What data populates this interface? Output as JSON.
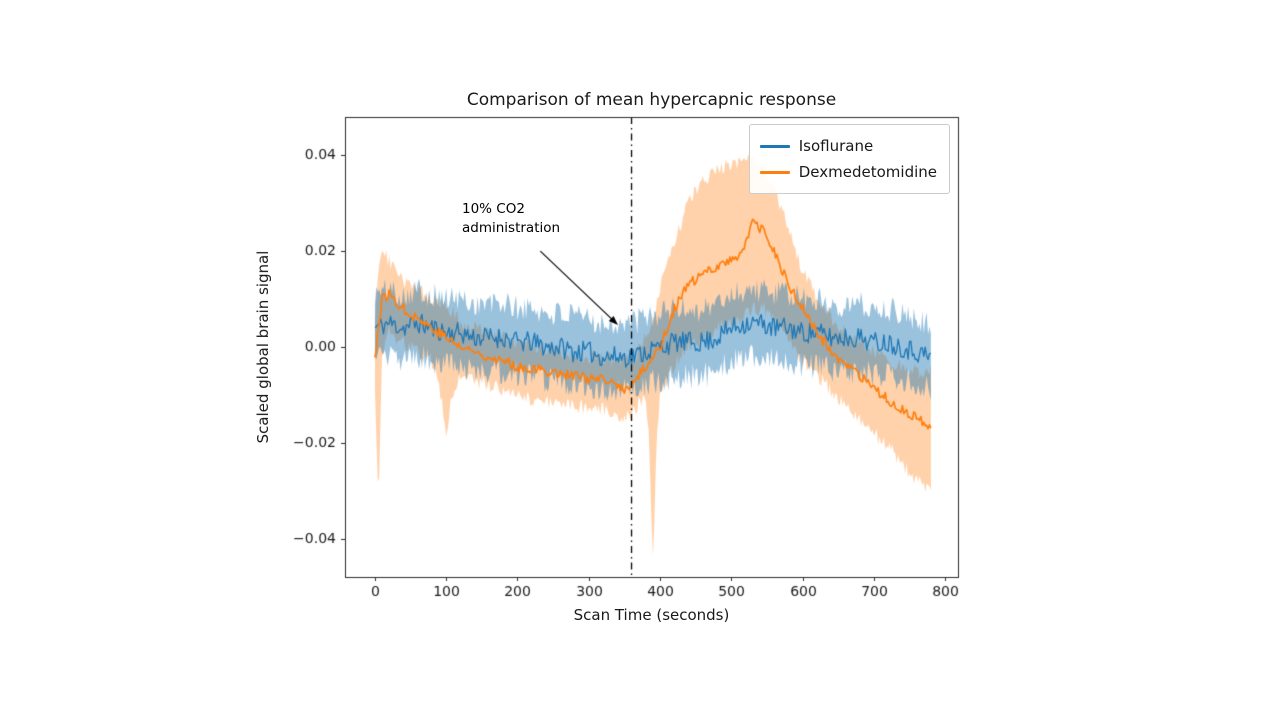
{
  "figure": {
    "title": "Comparison of mean hypercapnic response",
    "xlabel": "Scan Time (seconds)",
    "ylabel": "Scaled global brain signal",
    "background": "#ffffff"
  },
  "legend": {
    "items": [
      {
        "label": "Isoflurane",
        "color": "#1f77b4"
      },
      {
        "label": "Dexmedetomidine",
        "color": "#ff7f0e"
      }
    ]
  },
  "annotation": {
    "line1": "10% CO2",
    "line2": "administration",
    "arrow": {
      "from_x": 232,
      "from_y": 0.02,
      "to_x": 341,
      "to_y": 0.0046
    }
  },
  "vline": {
    "x": 360,
    "style": "dashdot",
    "color": "#000000"
  },
  "chart_data": {
    "type": "line",
    "title": "Comparison of mean hypercapnic response",
    "xlabel": "Scan Time (seconds)",
    "ylabel": "Scaled global brain signal",
    "xlim": [
      -42,
      818
    ],
    "ylim": [
      -0.048,
      0.048
    ],
    "grid": false,
    "legend_position": "upper right",
    "xticks": [
      0,
      100,
      200,
      300,
      400,
      500,
      600,
      700,
      800
    ],
    "xtick_labels": [
      "0",
      "100",
      "200",
      "300",
      "400",
      "500",
      "600",
      "700",
      "800"
    ],
    "yticks": [
      -0.04,
      -0.02,
      0.0,
      0.02,
      0.04
    ],
    "ytick_labels": [
      "−0.04",
      "−0.02",
      "0.00",
      "0.02",
      "0.04"
    ],
    "series": [
      {
        "name": "Isoflurane",
        "color": "#1f77b4",
        "band_color": "rgba(31,119,180,0.45)",
        "line_width": 1.3,
        "line_noise": 0.0022,
        "band_noise": 0.0028,
        "x": [
          0,
          20,
          40,
          60,
          80,
          100,
          120,
          140,
          160,
          180,
          200,
          220,
          240,
          260,
          280,
          300,
          320,
          340,
          360,
          380,
          400,
          420,
          440,
          460,
          480,
          500,
          520,
          540,
          560,
          580,
          600,
          620,
          640,
          660,
          680,
          700,
          720,
          740,
          760,
          780
        ],
        "mean": [
          0.004,
          0.005,
          0.004,
          0.005,
          0.004,
          0.003,
          0.003,
          0.002,
          0.002,
          0.002,
          0.001,
          0.001,
          0.0,
          0.0,
          -0.001,
          -0.001,
          -0.002,
          -0.002,
          -0.002,
          -0.001,
          0.0,
          0.001,
          0.001,
          0.001,
          0.002,
          0.004,
          0.005,
          0.005,
          0.004,
          0.004,
          0.003,
          0.003,
          0.002,
          0.002,
          0.002,
          0.001,
          0.001,
          0.0,
          -0.001,
          -0.002
        ],
        "upper": [
          0.011,
          0.012,
          0.011,
          0.012,
          0.011,
          0.01,
          0.01,
          0.009,
          0.009,
          0.009,
          0.008,
          0.008,
          0.007,
          0.007,
          0.006,
          0.006,
          0.005,
          0.005,
          0.005,
          0.006,
          0.007,
          0.008,
          0.008,
          0.008,
          0.009,
          0.011,
          0.012,
          0.012,
          0.011,
          0.011,
          0.01,
          0.01,
          0.009,
          0.009,
          0.009,
          0.008,
          0.008,
          0.007,
          0.006,
          0.005
        ],
        "lower": [
          -0.003,
          -0.002,
          -0.003,
          -0.002,
          -0.003,
          -0.004,
          -0.004,
          -0.005,
          -0.005,
          -0.005,
          -0.006,
          -0.006,
          -0.007,
          -0.007,
          -0.008,
          -0.008,
          -0.009,
          -0.009,
          -0.009,
          -0.008,
          -0.007,
          -0.006,
          -0.006,
          -0.006,
          -0.005,
          -0.003,
          -0.002,
          -0.002,
          -0.003,
          -0.003,
          -0.004,
          -0.004,
          -0.005,
          -0.005,
          -0.005,
          -0.006,
          -0.006,
          -0.007,
          -0.008,
          -0.009
        ]
      },
      {
        "name": "Dexmedetomidine",
        "color": "#ff7f0e",
        "band_color": "rgba(255,127,14,0.35)",
        "line_width": 1.7,
        "line_noise": 0.0011,
        "band_noise": 0.0016,
        "x": [
          0,
          5,
          10,
          20,
          40,
          60,
          80,
          95,
          100,
          105,
          120,
          140,
          160,
          180,
          200,
          220,
          240,
          260,
          280,
          300,
          320,
          340,
          355,
          365,
          380,
          385,
          390,
          395,
          400,
          420,
          440,
          460,
          480,
          500,
          515,
          530,
          545,
          560,
          580,
          600,
          620,
          640,
          660,
          680,
          700,
          720,
          740,
          760,
          780
        ],
        "mean": [
          -0.002,
          0.004,
          0.01,
          0.011,
          0.008,
          0.006,
          0.004,
          0.0025,
          0.002,
          0.0015,
          0.0,
          -0.001,
          -0.002,
          -0.003,
          -0.004,
          -0.0045,
          -0.005,
          -0.0055,
          -0.006,
          -0.0065,
          -0.007,
          -0.008,
          -0.009,
          -0.007,
          -0.004,
          -0.003,
          -0.002,
          -0.001,
          0.0,
          0.008,
          0.013,
          0.015,
          0.017,
          0.018,
          0.02,
          0.026,
          0.024,
          0.02,
          0.013,
          0.008,
          0.003,
          -0.001,
          -0.004,
          -0.006,
          -0.009,
          -0.011,
          -0.013,
          -0.015,
          -0.017
        ],
        "upper": [
          0.006,
          0.016,
          0.02,
          0.018,
          0.014,
          0.012,
          0.01,
          0.009,
          0.008,
          0.008,
          0.005,
          0.004,
          0.003,
          0.002,
          0.001,
          0.0,
          -0.0005,
          -0.001,
          -0.0015,
          -0.002,
          -0.002,
          -0.003,
          -0.003,
          -0.002,
          0.002,
          0.004,
          0.006,
          0.009,
          0.012,
          0.022,
          0.03,
          0.035,
          0.037,
          0.038,
          0.039,
          0.04,
          0.037,
          0.033,
          0.025,
          0.016,
          0.01,
          0.006,
          0.003,
          0.001,
          -0.001,
          -0.003,
          -0.004,
          -0.005,
          -0.005
        ],
        "lower": [
          -0.01,
          -0.033,
          -0.002,
          0.003,
          0.001,
          -0.001,
          -0.003,
          -0.012,
          -0.02,
          -0.012,
          -0.006,
          -0.007,
          -0.008,
          -0.009,
          -0.01,
          -0.011,
          -0.011,
          -0.012,
          -0.012,
          -0.013,
          -0.013,
          -0.014,
          -0.015,
          -0.013,
          -0.01,
          -0.02,
          -0.045,
          -0.02,
          -0.01,
          -0.004,
          0.0,
          0.002,
          0.004,
          0.005,
          0.006,
          0.008,
          0.008,
          0.006,
          0.001,
          -0.003,
          -0.006,
          -0.009,
          -0.012,
          -0.015,
          -0.018,
          -0.021,
          -0.024,
          -0.028,
          -0.03
        ]
      }
    ]
  }
}
